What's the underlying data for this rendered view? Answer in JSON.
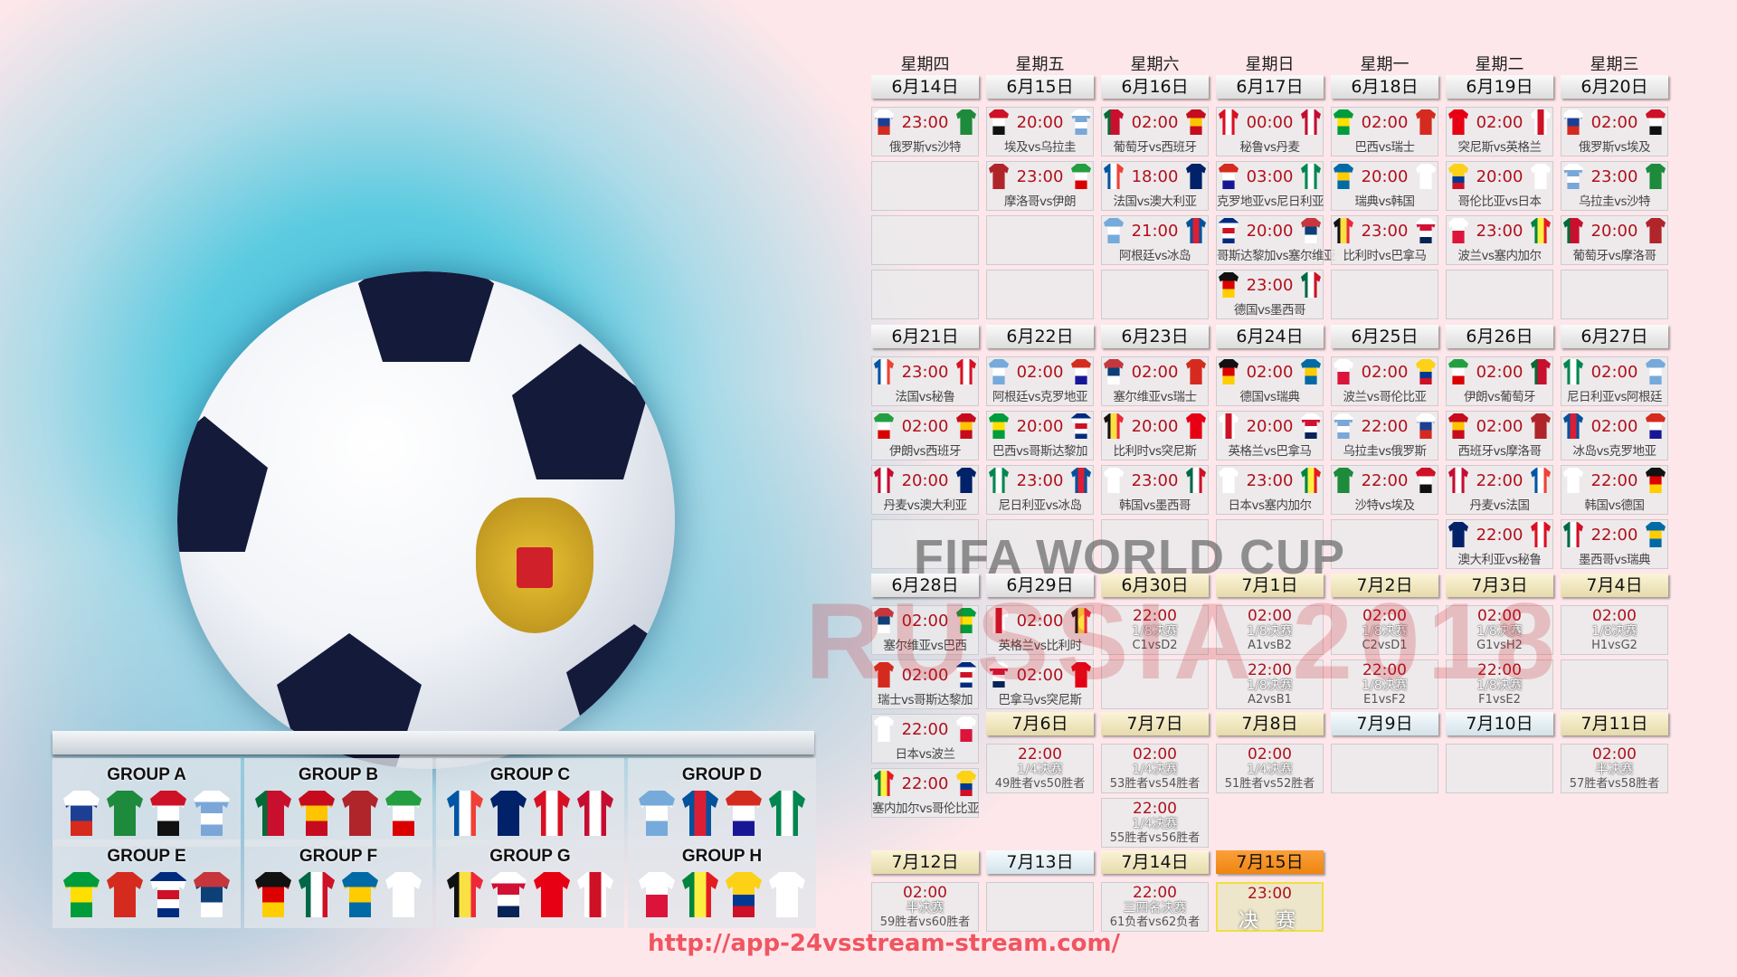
{
  "watermark": {
    "title": "FIFA WORLD CUP",
    "subtitle": "RUSSIA 2018"
  },
  "url": "http://app-24vsstream-stream.com/",
  "weekdays": [
    "星期四",
    "星期五",
    "星期六",
    "星期日",
    "星期一",
    "星期二",
    "星期三"
  ],
  "teams": {
    "俄罗斯": {
      "c": [
        "#ffffff",
        "#1c3f94",
        "#d52b1e"
      ],
      "d": "h"
    },
    "沙特": {
      "c": [
        "#1e8a3c"
      ],
      "d": "h"
    },
    "埃及": {
      "c": [
        "#ce1126",
        "#ffffff",
        "#111111"
      ],
      "d": "h"
    },
    "乌拉圭": {
      "c": [
        "#ffffff",
        "#7aa7d8",
        "#ffffff",
        "#7aa7d8"
      ],
      "d": "h"
    },
    "葡萄牙": {
      "c": [
        "#046a38",
        "#c8102e",
        "#c8102e"
      ],
      "d": "v"
    },
    "西班牙": {
      "c": [
        "#c60b1e",
        "#ffc400",
        "#c60b1e"
      ],
      "d": "h"
    },
    "摩洛哥": {
      "c": [
        "#b0252a"
      ],
      "d": "h"
    },
    "伊朗": {
      "c": [
        "#239f40",
        "#ffffff",
        "#da0000"
      ],
      "d": "h"
    },
    "法国": {
      "c": [
        "#0055a4",
        "#ffffff",
        "#ef4135"
      ],
      "d": "v"
    },
    "澳大利亚": {
      "c": [
        "#012169"
      ],
      "d": "h"
    },
    "秘鲁": {
      "c": [
        "#d91023",
        "#ffffff",
        "#d91023"
      ],
      "d": "v"
    },
    "丹麦": {
      "c": [
        "#c60c30",
        "#ffffff",
        "#c60c30"
      ],
      "d": "v"
    },
    "阿根廷": {
      "c": [
        "#75aadb",
        "#ffffff",
        "#75aadb"
      ],
      "d": "h"
    },
    "冰岛": {
      "c": [
        "#02529c",
        "#dc1e35",
        "#02529c"
      ],
      "d": "v"
    },
    "克罗地亚": {
      "c": [
        "#d52b1e",
        "#ffffff",
        "#171796"
      ],
      "d": "h"
    },
    "尼日利亚": {
      "c": [
        "#008751",
        "#ffffff",
        "#008751"
      ],
      "d": "v"
    },
    "巴西": {
      "c": [
        "#009c3b",
        "#ffdf00",
        "#009c3b"
      ],
      "d": "h"
    },
    "瑞士": {
      "c": [
        "#d52b1e"
      ],
      "d": "h"
    },
    "哥斯达黎加": {
      "c": [
        "#002b7f",
        "#ffffff",
        "#ce1126",
        "#ffffff",
        "#002b7f"
      ],
      "d": "h"
    },
    "塞尔维亚": {
      "c": [
        "#c6363c",
        "#0c4076",
        "#ffffff"
      ],
      "d": "h"
    },
    "德国": {
      "c": [
        "#111111",
        "#dd0000",
        "#ffce00"
      ],
      "d": "h"
    },
    "墨西哥": {
      "c": [
        "#006847",
        "#ffffff",
        "#ce1126"
      ],
      "d": "v"
    },
    "瑞典": {
      "c": [
        "#006aa7",
        "#fecc00",
        "#006aa7"
      ],
      "d": "h"
    },
    "韩国": {
      "c": [
        "#ffffff"
      ],
      "d": "h"
    },
    "比利时": {
      "c": [
        "#111111",
        "#fae042",
        "#ed2939"
      ],
      "d": "v"
    },
    "巴拿马": {
      "c": [
        "#ffffff",
        "#d21034",
        "#ffffff",
        "#072357"
      ],
      "d": "h"
    },
    "突尼斯": {
      "c": [
        "#e70013"
      ],
      "d": "h"
    },
    "英格兰": {
      "c": [
        "#ffffff",
        "#ce1124",
        "#ffffff"
      ],
      "d": "v"
    },
    "波兰": {
      "c": [
        "#ffffff",
        "#dc143c"
      ],
      "d": "h"
    },
    "塞内加尔": {
      "c": [
        "#00853f",
        "#fdef42",
        "#e31b23"
      ],
      "d": "v"
    },
    "哥伦比亚": {
      "c": [
        "#fcd116",
        "#fcd116",
        "#003893",
        "#ce1126"
      ],
      "d": "h"
    },
    "日本": {
      "c": [
        "#ffffff"
      ],
      "d": "h"
    }
  },
  "days": [
    {
      "date": "6月14日",
      "type": "group",
      "matches": [
        {
          "time": "23:00",
          "label": "俄罗斯vs沙特"
        }
      ]
    },
    {
      "date": "6月15日",
      "type": "group",
      "matches": [
        {
          "time": "20:00",
          "label": "埃及vs乌拉圭"
        },
        {
          "time": "23:00",
          "label": "摩洛哥vs伊朗"
        }
      ]
    },
    {
      "date": "6月16日",
      "type": "group",
      "matches": [
        {
          "time": "02:00",
          "label": "葡萄牙vs西班牙"
        },
        {
          "time": "18:00",
          "label": "法国vs澳大利亚"
        },
        {
          "time": "21:00",
          "label": "阿根廷vs冰岛"
        }
      ]
    },
    {
      "date": "6月17日",
      "type": "group",
      "matches": [
        {
          "time": "00:00",
          "label": "秘鲁vs丹麦"
        },
        {
          "time": "03:00",
          "label": "克罗地亚vs尼日利亚"
        },
        {
          "time": "20:00",
          "label": "哥斯达黎加vs塞尔维亚"
        },
        {
          "time": "23:00",
          "label": "德国vs墨西哥"
        }
      ]
    },
    {
      "date": "6月18日",
      "type": "group",
      "matches": [
        {
          "time": "02:00",
          "label": "巴西vs瑞士"
        },
        {
          "time": "20:00",
          "label": "瑞典vs韩国"
        },
        {
          "time": "23:00",
          "label": "比利时vs巴拿马"
        }
      ]
    },
    {
      "date": "6月19日",
      "type": "group",
      "matches": [
        {
          "time": "02:00",
          "label": "突尼斯vs英格兰"
        },
        {
          "time": "20:00",
          "label": "哥伦比亚vs日本"
        },
        {
          "time": "23:00",
          "label": "波兰vs塞内加尔"
        }
      ]
    },
    {
      "date": "6月20日",
      "type": "group",
      "matches": [
        {
          "time": "02:00",
          "label": "俄罗斯vs埃及"
        },
        {
          "time": "23:00",
          "label": "乌拉圭vs沙特"
        },
        {
          "time": "20:00",
          "label": "葡萄牙vs摩洛哥"
        }
      ]
    },
    {
      "date": "6月21日",
      "type": "group",
      "matches": [
        {
          "time": "23:00",
          "label": "法国vs秘鲁"
        },
        {
          "time": "02:00",
          "label": "伊朗vs西班牙"
        },
        {
          "time": "20:00",
          "label": "丹麦vs澳大利亚"
        }
      ]
    },
    {
      "date": "6月22日",
      "type": "group",
      "matches": [
        {
          "time": "02:00",
          "label": "阿根廷vs克罗地亚"
        },
        {
          "time": "20:00",
          "label": "巴西vs哥斯达黎加"
        },
        {
          "time": "23:00",
          "label": "尼日利亚vs冰岛"
        }
      ]
    },
    {
      "date": "6月23日",
      "type": "group",
      "matches": [
        {
          "time": "02:00",
          "label": "塞尔维亚vs瑞士"
        },
        {
          "time": "20:00",
          "label": "比利时vs突尼斯"
        },
        {
          "time": "23:00",
          "label": "韩国vs墨西哥"
        }
      ]
    },
    {
      "date": "6月24日",
      "type": "group",
      "matches": [
        {
          "time": "02:00",
          "label": "德国vs瑞典"
        },
        {
          "time": "20:00",
          "label": "英格兰vs巴拿马"
        },
        {
          "time": "23:00",
          "label": "日本vs塞内加尔"
        }
      ]
    },
    {
      "date": "6月25日",
      "type": "group",
      "matches": [
        {
          "time": "02:00",
          "label": "波兰vs哥伦比亚"
        },
        {
          "time": "22:00",
          "label": "乌拉圭vs俄罗斯"
        },
        {
          "time": "22:00",
          "label": "沙特vs埃及"
        }
      ]
    },
    {
      "date": "6月26日",
      "type": "group",
      "matches": [
        {
          "time": "02:00",
          "label": "伊朗vs葡萄牙"
        },
        {
          "time": "02:00",
          "label": "西班牙vs摩洛哥"
        },
        {
          "time": "22:00",
          "label": "丹麦vs法国"
        },
        {
          "time": "22:00",
          "label": "澳大利亚vs秘鲁"
        }
      ]
    },
    {
      "date": "6月27日",
      "type": "group",
      "matches": [
        {
          "time": "02:00",
          "label": "尼日利亚vs阿根廷"
        },
        {
          "time": "02:00",
          "label": "冰岛vs克罗地亚"
        },
        {
          "time": "22:00",
          "label": "韩国vs德国"
        },
        {
          "time": "22:00",
          "label": "墨西哥vs瑞典"
        }
      ]
    },
    {
      "date": "6月28日",
      "type": "group",
      "matches": [
        {
          "time": "02:00",
          "label": "塞尔维亚vs巴西"
        },
        {
          "time": "02:00",
          "label": "瑞士vs哥斯达黎加"
        },
        {
          "time": "22:00",
          "label": "日本vs波兰"
        },
        {
          "time": "22:00",
          "label": "塞内加尔vs哥伦比亚"
        }
      ]
    },
    {
      "date": "6月29日",
      "type": "group",
      "matches": [
        {
          "time": "02:00",
          "label": "英格兰vs比利时"
        },
        {
          "time": "02:00",
          "label": "巴拿马vs突尼斯"
        }
      ]
    },
    {
      "date": "6月30日",
      "type": "ko",
      "matches": [
        {
          "time": "22:00",
          "round": "1/8决赛",
          "pair": "C1vsD2"
        }
      ]
    },
    {
      "date": "7月1日",
      "type": "ko",
      "matches": [
        {
          "time": "02:00",
          "round": "1/8决赛",
          "pair": "A1vsB2"
        },
        {
          "time": "22:00",
          "round": "1/8决赛",
          "pair": "A2vsB1"
        }
      ]
    },
    {
      "date": "7月2日",
      "type": "ko",
      "matches": [
        {
          "time": "02:00",
          "round": "1/8决赛",
          "pair": "C2vsD1"
        },
        {
          "time": "22:00",
          "round": "1/8决赛",
          "pair": "E1vsF2"
        }
      ]
    },
    {
      "date": "7月3日",
      "type": "ko",
      "matches": [
        {
          "time": "02:00",
          "round": "1/8决赛",
          "pair": "G1vsH2"
        },
        {
          "time": "22:00",
          "round": "1/8决赛",
          "pair": "F1vsE2"
        }
      ]
    },
    {
      "date": "7月4日",
      "type": "ko",
      "matches": [
        {
          "time": "02:00",
          "round": "1/8决赛",
          "pair": "H1vsG2"
        }
      ]
    },
    {
      "date": "7月6日",
      "type": "ko",
      "matches": [
        {
          "time": "22:00",
          "round": "1/4决赛",
          "pair": "49胜者vs50胜者"
        }
      ]
    },
    {
      "date": "7月7日",
      "type": "ko",
      "matches": [
        {
          "time": "02:00",
          "round": "1/4决赛",
          "pair": "53胜者vs54胜者"
        },
        {
          "time": "22:00",
          "round": "1/4决赛",
          "pair": "55胜者vs56胜者"
        }
      ]
    },
    {
      "date": "7月8日",
      "type": "ko",
      "matches": [
        {
          "time": "02:00",
          "round": "1/4决赛",
          "pair": "51胜者vs52胜者"
        }
      ]
    },
    {
      "date": "7月9日",
      "type": "rest",
      "matches": []
    },
    {
      "date": "7月10日",
      "type": "rest",
      "matches": []
    },
    {
      "date": "7月11日",
      "type": "ko",
      "matches": [
        {
          "time": "02:00",
          "round": "半决赛",
          "pair": "57胜者vs58胜者"
        }
      ]
    },
    {
      "date": "7月12日",
      "type": "ko",
      "matches": [
        {
          "time": "02:00",
          "round": "半决赛",
          "pair": "59胜者vs60胜者"
        }
      ]
    },
    {
      "date": "7月13日",
      "type": "rest",
      "matches": []
    },
    {
      "date": "7月14日",
      "type": "ko",
      "matches": [
        {
          "time": "22:00",
          "round": "三四名决赛",
          "pair": "61负者vs62负者"
        }
      ]
    },
    {
      "date": "7月15日",
      "type": "final",
      "matches": [
        {
          "time": "23:00",
          "final": "决 赛"
        }
      ]
    }
  ],
  "groups": [
    {
      "name": "GROUP A",
      "teams": [
        "俄罗斯",
        "沙特",
        "埃及",
        "乌拉圭"
      ]
    },
    {
      "name": "GROUP B",
      "teams": [
        "葡萄牙",
        "西班牙",
        "摩洛哥",
        "伊朗"
      ]
    },
    {
      "name": "GROUP C",
      "teams": [
        "法国",
        "澳大利亚",
        "秘鲁",
        "丹麦"
      ]
    },
    {
      "name": "GROUP D",
      "teams": [
        "阿根廷",
        "冰岛",
        "克罗地亚",
        "尼日利亚"
      ]
    },
    {
      "name": "GROUP E",
      "teams": [
        "巴西",
        "瑞士",
        "哥斯达黎加",
        "塞尔维亚"
      ]
    },
    {
      "name": "GROUP F",
      "teams": [
        "德国",
        "墨西哥",
        "瑞典",
        "韩国"
      ]
    },
    {
      "name": "GROUP G",
      "teams": [
        "比利时",
        "巴拿马",
        "突尼斯",
        "英格兰"
      ]
    },
    {
      "name": "GROUP H",
      "teams": [
        "波兰",
        "塞内加尔",
        "哥伦比亚",
        "日本"
      ]
    }
  ]
}
